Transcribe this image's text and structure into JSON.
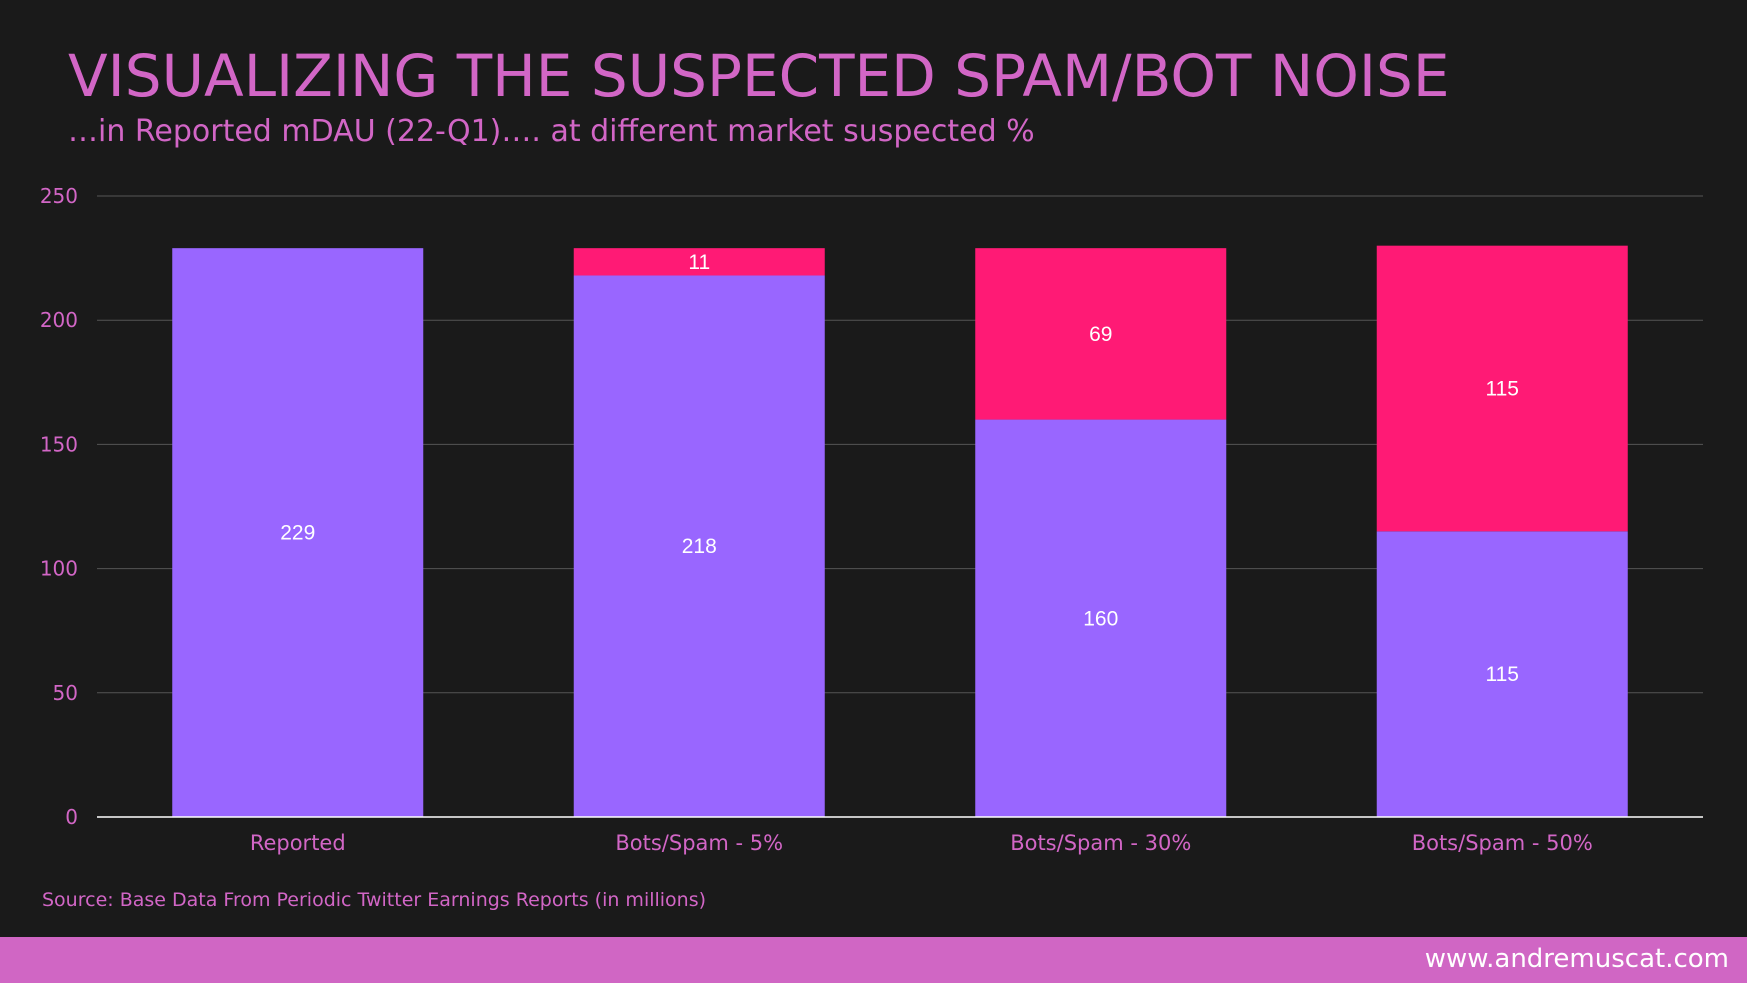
{
  "header": {
    "title": "VISUALIZING THE SUSPECTED SPAM/BOT NOISE",
    "subtitle": "…in Reported mDAU (22-Q1)…. at different market suspected %"
  },
  "footer": {
    "source": "Source: Base Data From Periodic Twitter Earnings Reports (in millions)",
    "url": "www.andremuscat.com"
  },
  "colors": {
    "background": "#1a1a1a",
    "accent": "#d266c6",
    "mdau_series": "#9966ff",
    "bots_series": "#ff1a75",
    "grid": "#555555",
    "baseline": "#ffffff",
    "label": "#ffffff"
  },
  "chart_data": {
    "type": "bar",
    "stacked": true,
    "title": "VISUALIZING THE SUSPECTED SPAM/BOT NOISE",
    "subtitle": "…in Reported mDAU (22-Q1)…. at different market suspected %",
    "xlabel": "",
    "ylabel": "",
    "ylim": [
      0,
      250
    ],
    "yticks": [
      0,
      50,
      100,
      150,
      200,
      250
    ],
    "grid": true,
    "legend": "none",
    "categories": [
      "Reported",
      "Bots/Spam - 5%",
      "Bots/Spam - 30%",
      "Bots/Spam - 50%"
    ],
    "series": [
      {
        "name": "mDAU",
        "color": "#9966ff",
        "values": [
          229,
          218,
          160,
          115
        ]
      },
      {
        "name": "Bots/Spam",
        "color": "#ff1a75",
        "values": [
          0,
          11,
          69,
          115
        ]
      }
    ]
  }
}
